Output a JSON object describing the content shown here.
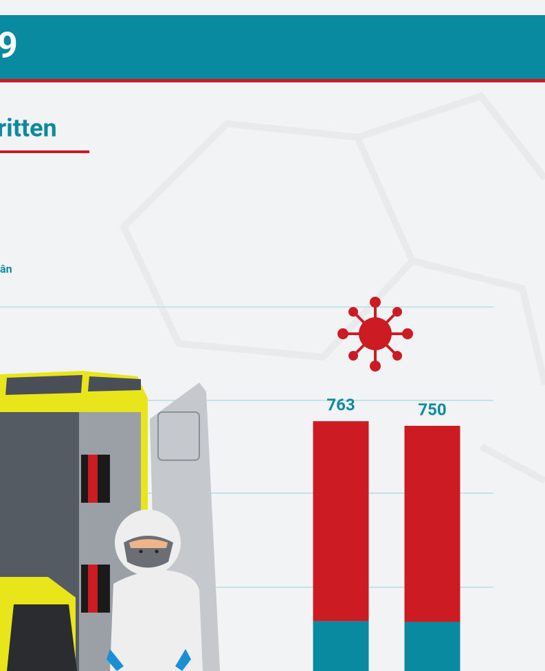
{
  "header": {
    "title": "9"
  },
  "section": {
    "title": "ritten",
    "subtitle": "ân"
  },
  "chart_data": {
    "type": "bar",
    "stacked": true,
    "categories": [
      null,
      null
    ],
    "series": [
      {
        "color": "#0a8aa0",
        "values": [
          203,
          201
        ]
      },
      {
        "color": "#cc1b22",
        "values": [
          560,
          549
        ]
      }
    ],
    "totals": [
      763,
      750
    ],
    "ylim": [
      0,
      900
    ]
  }
}
